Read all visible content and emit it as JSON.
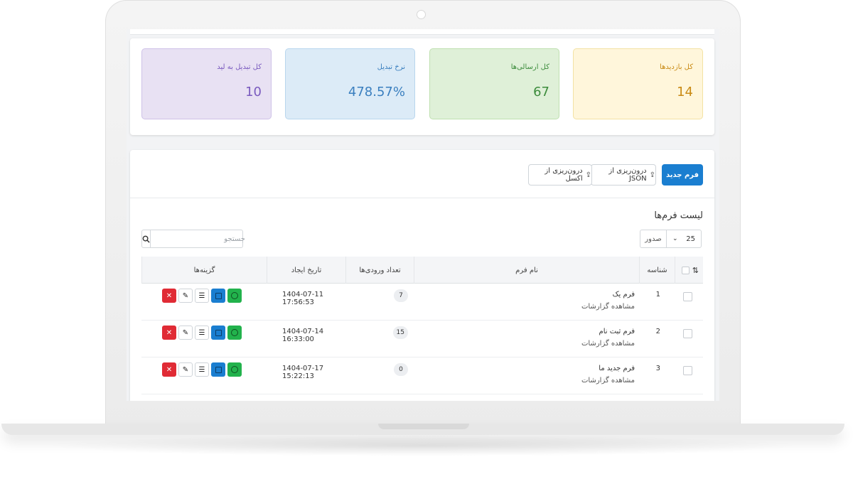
{
  "stats": [
    {
      "label": "کل بازدیدها",
      "value": "14",
      "bg": "#fff6db",
      "border": "#f3e2a4",
      "label_color": "#c98a14",
      "value_color": "#c98a14"
    },
    {
      "label": "کل ارسالی‌ها",
      "value": "67",
      "bg": "#dff0d8",
      "border": "#bfe0b0",
      "label_color": "#3c8c3c",
      "value_color": "#3c8c3c"
    },
    {
      "label": "نرخ تبدیل",
      "value": "478.57%",
      "bg": "#dcebf7",
      "border": "#b9d6ee",
      "label_color": "#3a7fbf",
      "value_color": "#3a7fbf"
    },
    {
      "label": "کل تبدیل به لید",
      "value": "10",
      "bg": "#e8e1f3",
      "border": "#cfc2e8",
      "label_color": "#7a5bbf",
      "value_color": "#7a5bbf"
    }
  ],
  "toolbar": {
    "new_form": "فرم جدید",
    "import_json": "درون‌ریزی از JSON",
    "import_excel": "درون‌ریزی از اکسل"
  },
  "list": {
    "title": "لیست فرم‌ها",
    "per_page_value": "25",
    "per_page_label": "صدور",
    "search_placeholder": "جستجو"
  },
  "table": {
    "headers": {
      "id": "شناسه",
      "name": "نام فرم",
      "count": "تعداد ورودی‌ها",
      "date": "تاریخ ایجاد",
      "actions": "گزینه‌ها"
    },
    "rows": [
      {
        "id": "1",
        "name": "فرم یک",
        "report": "مشاهده گزارشات",
        "count": "7",
        "date": "1404-07-11 17:56:53"
      },
      {
        "id": "2",
        "name": "فرم ثبت نام",
        "report": "مشاهده گزارشات",
        "count": "15",
        "date": "1404-07-14 16:33:00"
      },
      {
        "id": "3",
        "name": "فرم جدید ما",
        "report": "مشاهده گزارشات",
        "count": "0",
        "date": "1404-07-17 15:22:13"
      }
    ]
  },
  "colors": {
    "primary": "#1a7ed0",
    "danger": "#e02b35",
    "success": "#22b24c"
  },
  "icons": [
    "upload-icon",
    "search-icon",
    "chevron-down-icon",
    "sort-icon",
    "delete-icon",
    "edit-icon",
    "list-icon",
    "view-icon",
    "stats-icon"
  ]
}
